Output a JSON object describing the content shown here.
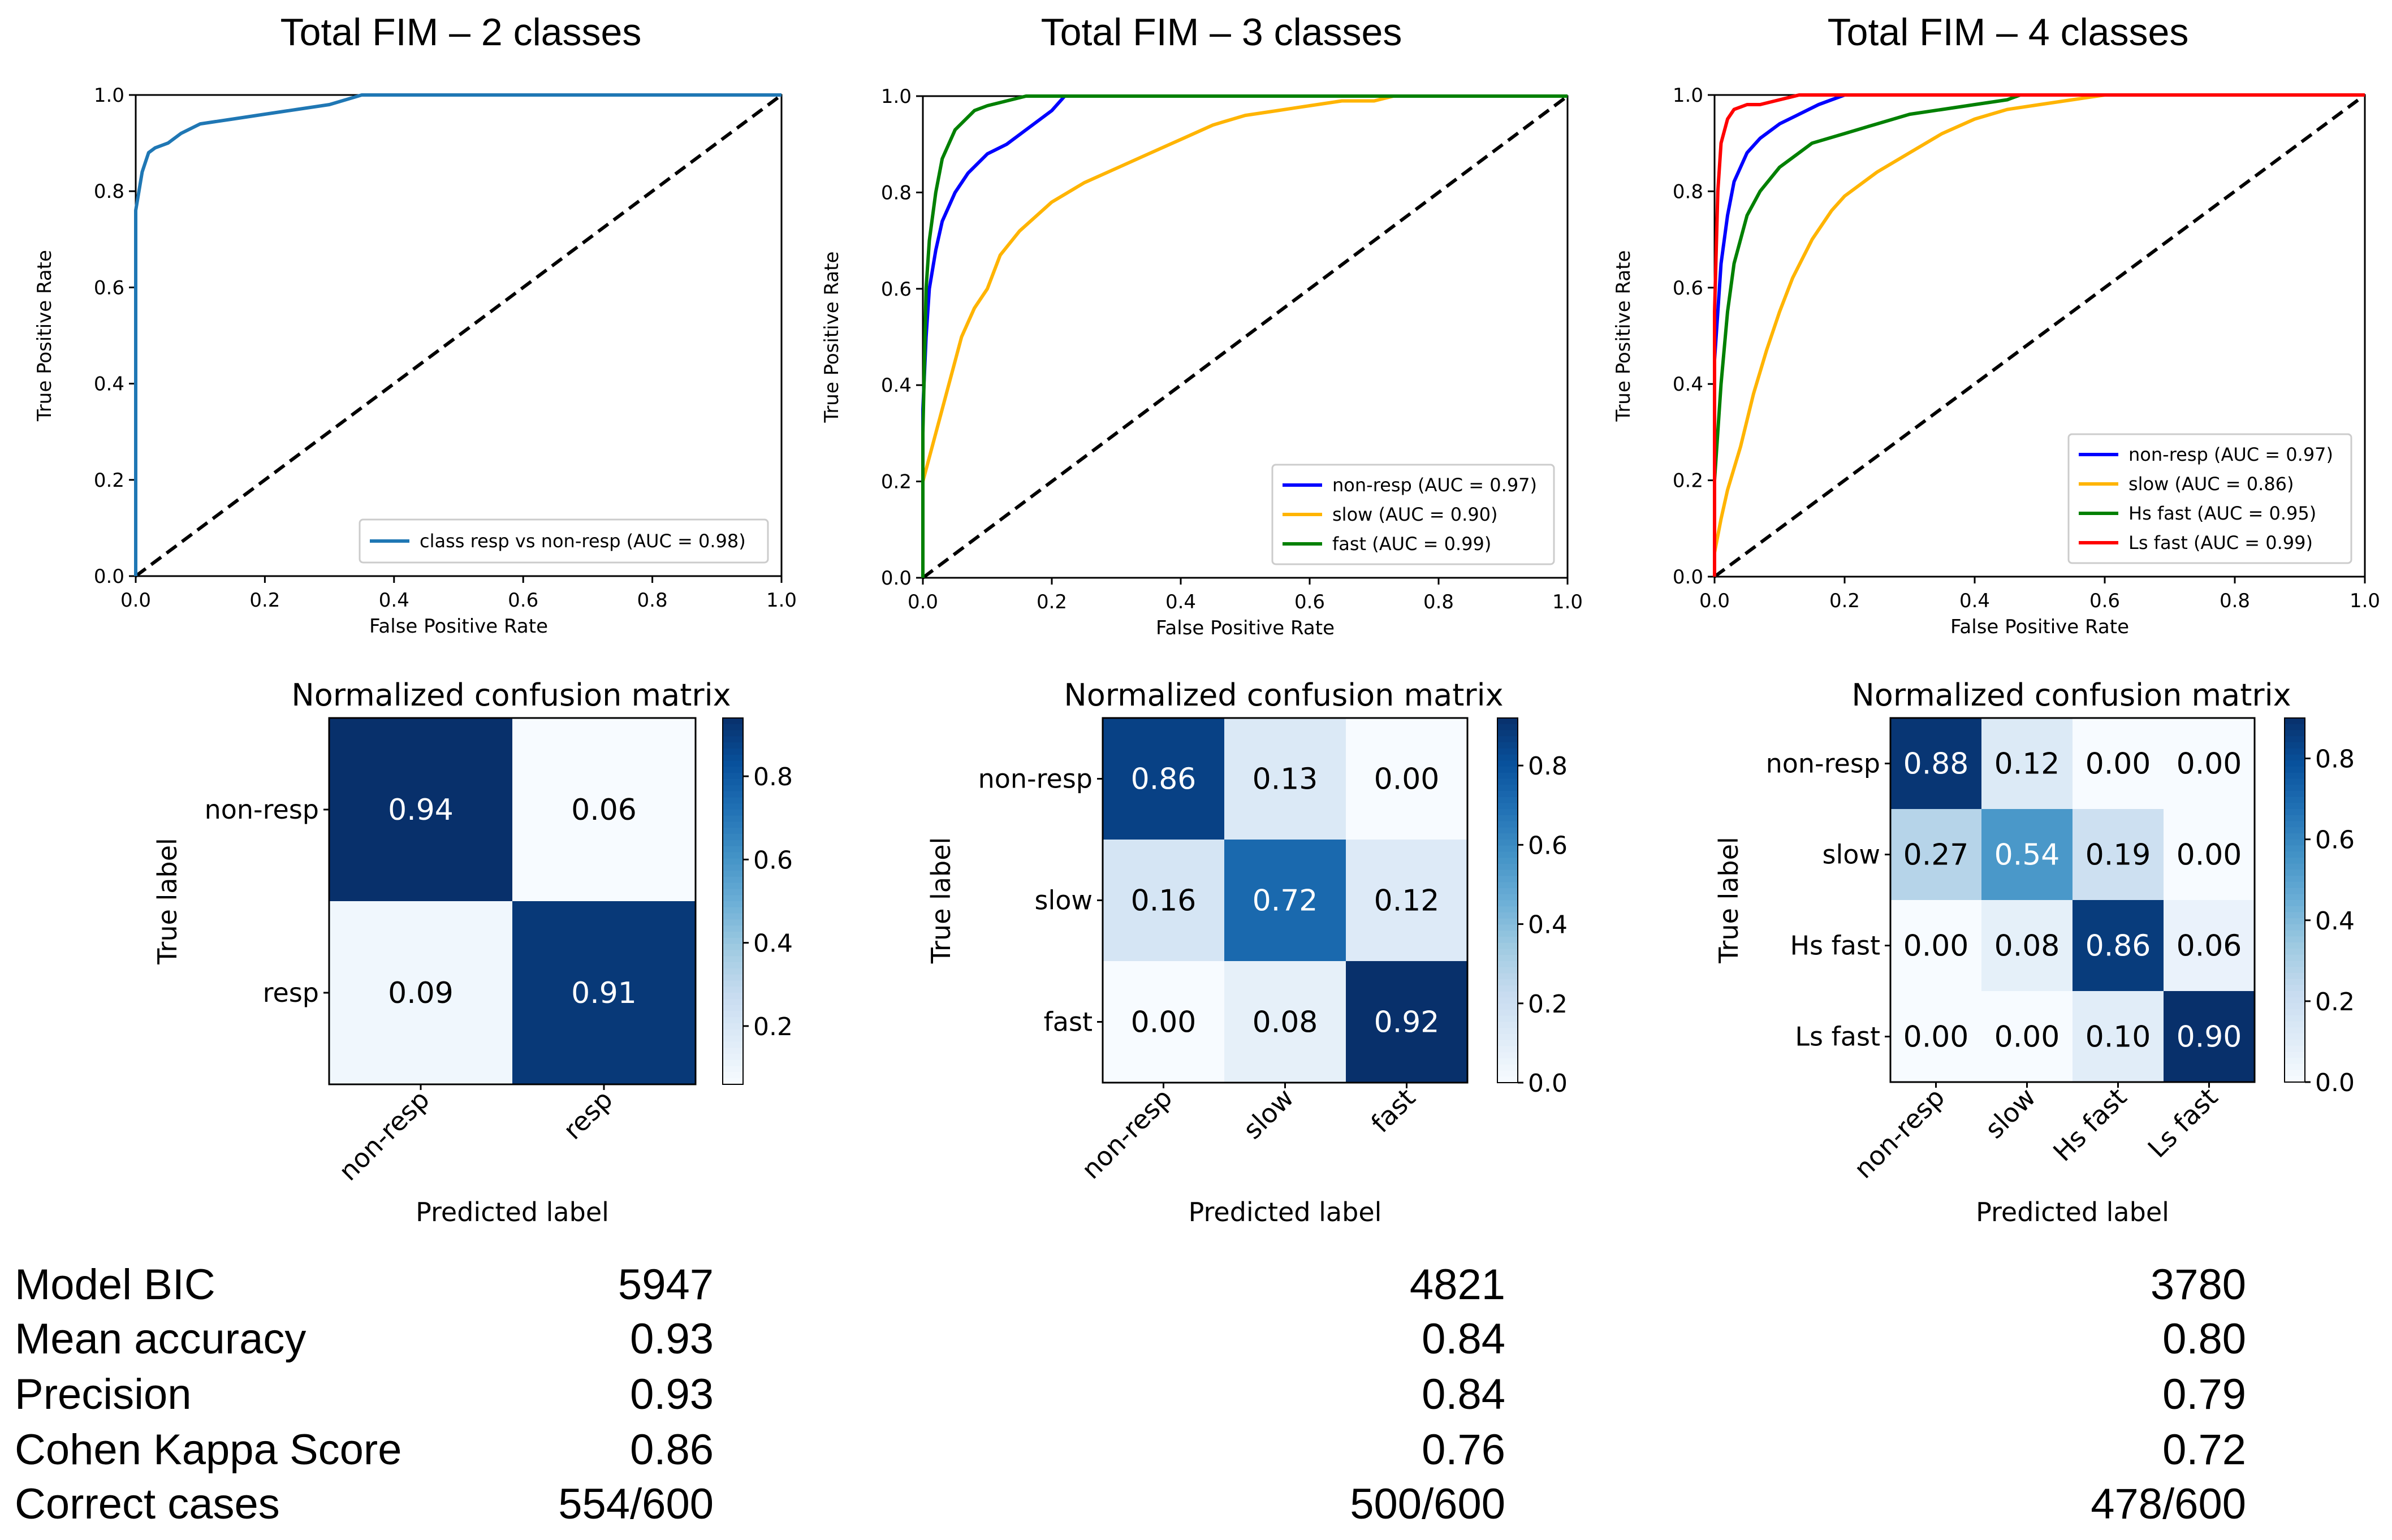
{
  "chart_data": [
    {
      "type": "line",
      "title": "Total FIM – 2 classes",
      "xlabel": "False Positive Rate",
      "ylabel": "True Positive Rate",
      "xlim": [
        0.0,
        1.0
      ],
      "ylim": [
        0.0,
        1.0
      ],
      "xticks": [
        "0.0",
        "0.2",
        "0.4",
        "0.6",
        "0.8",
        "1.0"
      ],
      "yticks": [
        "0.0",
        "0.2",
        "0.4",
        "0.6",
        "0.8",
        "1.0"
      ],
      "legend_position": "lower-right",
      "diagonal": "dashed",
      "series": [
        {
          "name": "class resp vs non-resp (AUC = 0.98)",
          "color": "#1f77b4",
          "x": [
            0,
            0,
            0.005,
            0.01,
            0.015,
            0.02,
            0.03,
            0.05,
            0.07,
            0.1,
            0.15,
            0.2,
            0.25,
            0.3,
            0.35,
            0.5,
            0.7,
            1.0
          ],
          "y": [
            0,
            0.76,
            0.8,
            0.84,
            0.86,
            0.88,
            0.89,
            0.9,
            0.92,
            0.94,
            0.95,
            0.96,
            0.97,
            0.98,
            1.0,
            1.0,
            1.0,
            1.0
          ]
        }
      ]
    },
    {
      "type": "line",
      "title": "Total FIM – 3 classes",
      "xlabel": "False Positive Rate",
      "ylabel": "True Positive Rate",
      "xlim": [
        0.0,
        1.0
      ],
      "ylim": [
        0.0,
        1.0
      ],
      "xticks": [
        "0.0",
        "0.2",
        "0.4",
        "0.6",
        "0.8",
        "1.0"
      ],
      "yticks": [
        "0.0",
        "0.2",
        "0.4",
        "0.6",
        "0.8",
        "1.0"
      ],
      "legend_position": "lower-right",
      "diagonal": "dashed",
      "series": [
        {
          "name": "non-resp (AUC = 0.97)",
          "color": "#0000ff",
          "x": [
            0,
            0,
            0.005,
            0.01,
            0.02,
            0.03,
            0.05,
            0.07,
            0.1,
            0.13,
            0.16,
            0.2,
            0.22,
            0.5,
            1.0
          ],
          "y": [
            0,
            0.35,
            0.5,
            0.6,
            0.68,
            0.74,
            0.8,
            0.84,
            0.88,
            0.9,
            0.93,
            0.97,
            1.0,
            1.0,
            1.0
          ]
        },
        {
          "name": "slow (AUC = 0.90)",
          "color": "#ffb400",
          "x": [
            0,
            0,
            0.01,
            0.02,
            0.04,
            0.06,
            0.08,
            0.1,
            0.12,
            0.15,
            0.2,
            0.25,
            0.3,
            0.35,
            0.4,
            0.45,
            0.5,
            0.55,
            0.6,
            0.65,
            0.7,
            0.73,
            0.8,
            1.0
          ],
          "y": [
            0,
            0.2,
            0.25,
            0.3,
            0.4,
            0.5,
            0.56,
            0.6,
            0.67,
            0.72,
            0.78,
            0.82,
            0.85,
            0.88,
            0.91,
            0.94,
            0.96,
            0.97,
            0.98,
            0.99,
            0.99,
            1.0,
            1.0,
            1.0
          ]
        },
        {
          "name": "fast (AUC = 0.99)",
          "color": "#008000",
          "x": [
            0,
            0,
            0.005,
            0.01,
            0.02,
            0.03,
            0.05,
            0.08,
            0.1,
            0.13,
            0.16,
            0.18,
            0.3,
            1.0
          ],
          "y": [
            0,
            0.3,
            0.6,
            0.7,
            0.8,
            0.87,
            0.93,
            0.97,
            0.98,
            0.99,
            1.0,
            1.0,
            1.0,
            1.0
          ]
        }
      ]
    },
    {
      "type": "line",
      "title": "Total FIM – 4 classes",
      "xlabel": "False Positive Rate",
      "ylabel": "True Positive Rate",
      "xlim": [
        0.0,
        1.0
      ],
      "ylim": [
        0.0,
        1.0
      ],
      "xticks": [
        "0.0",
        "0.2",
        "0.4",
        "0.6",
        "0.8",
        "1.0"
      ],
      "yticks": [
        "0.0",
        "0.2",
        "0.4",
        "0.6",
        "0.8",
        "1.0"
      ],
      "legend_position": "lower-right",
      "diagonal": "dashed",
      "series": [
        {
          "name": "non-resp (AUC = 0.97)",
          "color": "#0000ff",
          "x": [
            0,
            0,
            0.005,
            0.01,
            0.02,
            0.03,
            0.05,
            0.07,
            0.1,
            0.13,
            0.16,
            0.2,
            0.3,
            1.0
          ],
          "y": [
            0,
            0.45,
            0.55,
            0.65,
            0.75,
            0.82,
            0.88,
            0.91,
            0.94,
            0.96,
            0.98,
            1.0,
            1.0,
            1.0
          ]
        },
        {
          "name": "slow (AUC = 0.86)",
          "color": "#ffb400",
          "x": [
            0,
            0,
            0.01,
            0.02,
            0.04,
            0.06,
            0.08,
            0.1,
            0.12,
            0.15,
            0.18,
            0.2,
            0.25,
            0.3,
            0.35,
            0.4,
            0.45,
            0.5,
            0.55,
            0.6,
            0.7,
            1.0
          ],
          "y": [
            0,
            0.05,
            0.12,
            0.18,
            0.27,
            0.38,
            0.47,
            0.55,
            0.62,
            0.7,
            0.76,
            0.79,
            0.84,
            0.88,
            0.92,
            0.95,
            0.97,
            0.98,
            0.99,
            1.0,
            1.0,
            1.0
          ]
        },
        {
          "name": "Hs fast (AUC = 0.95)",
          "color": "#008000",
          "x": [
            0,
            0,
            0.01,
            0.02,
            0.03,
            0.05,
            0.07,
            0.1,
            0.12,
            0.15,
            0.2,
            0.25,
            0.3,
            0.35,
            0.4,
            0.45,
            0.47,
            0.6,
            1.0
          ],
          "y": [
            0,
            0.2,
            0.4,
            0.55,
            0.65,
            0.75,
            0.8,
            0.85,
            0.87,
            0.9,
            0.92,
            0.94,
            0.96,
            0.97,
            0.98,
            0.99,
            1.0,
            1.0,
            1.0
          ]
        },
        {
          "name": "Ls fast (AUC = 0.99)",
          "color": "#ff0000",
          "x": [
            0,
            0,
            0.005,
            0.01,
            0.02,
            0.03,
            0.05,
            0.07,
            0.1,
            0.13,
            0.2,
            1.0
          ],
          "y": [
            0,
            0.55,
            0.8,
            0.9,
            0.95,
            0.97,
            0.98,
            0.98,
            0.99,
            1.0,
            1.0,
            1.0
          ]
        }
      ]
    },
    {
      "type": "heatmap",
      "title": "Normalized confusion matrix",
      "xlabel": "Predicted label",
      "ylabel": "True label",
      "labels": [
        "non-resp",
        "resp"
      ],
      "values": [
        [
          0.94,
          0.06
        ],
        [
          0.09,
          0.91
        ]
      ],
      "cell_text": [
        [
          "0.94",
          "0.06"
        ],
        [
          "0.09",
          "0.91"
        ]
      ],
      "colorbar_ticks": [
        "0.2",
        "0.4",
        "0.6",
        "0.8"
      ],
      "colorbar_tick_values": [
        0.2,
        0.4,
        0.6,
        0.8
      ],
      "colorbar_range": [
        0.06,
        0.94
      ],
      "colormap": "Blues"
    },
    {
      "type": "heatmap",
      "title": "Normalized confusion matrix",
      "xlabel": "Predicted label",
      "ylabel": "True label",
      "labels": [
        "non-resp",
        "slow",
        "fast"
      ],
      "values": [
        [
          0.86,
          0.13,
          0.0
        ],
        [
          0.16,
          0.72,
          0.12
        ],
        [
          0.0,
          0.08,
          0.92
        ]
      ],
      "cell_text": [
        [
          "0.86",
          "0.13",
          "0.00"
        ],
        [
          "0.16",
          "0.72",
          "0.12"
        ],
        [
          "0.00",
          "0.08",
          "0.92"
        ]
      ],
      "colorbar_ticks": [
        "0.0",
        "0.2",
        "0.4",
        "0.6",
        "0.8"
      ],
      "colorbar_tick_values": [
        0.0,
        0.2,
        0.4,
        0.6,
        0.8
      ],
      "colorbar_range": [
        0.0,
        0.92
      ],
      "colormap": "Blues"
    },
    {
      "type": "heatmap",
      "title": "Normalized confusion matrix",
      "xlabel": "Predicted label",
      "ylabel": "True label",
      "labels": [
        "non-resp",
        "slow",
        "Hs fast",
        "Ls fast"
      ],
      "values": [
        [
          0.88,
          0.12,
          0.0,
          0.0
        ],
        [
          0.27,
          0.54,
          0.19,
          0.0
        ],
        [
          0.0,
          0.08,
          0.86,
          0.06
        ],
        [
          0.0,
          0.0,
          0.1,
          0.9
        ]
      ],
      "cell_text": [
        [
          "0.88",
          "0.12",
          "0.00",
          "0.00"
        ],
        [
          "0.27",
          "0.54",
          "0.19",
          "0.00"
        ],
        [
          "0.00",
          "0.08",
          "0.86",
          "0.06"
        ],
        [
          "0.00",
          "0.00",
          "0.10",
          "0.90"
        ]
      ],
      "colorbar_ticks": [
        "0.0",
        "0.2",
        "0.4",
        "0.6",
        "0.8"
      ],
      "colorbar_tick_values": [
        0.0,
        0.2,
        0.4,
        0.6,
        0.8
      ],
      "colorbar_range": [
        0.0,
        0.9
      ],
      "colormap": "Blues"
    }
  ],
  "stats_table": {
    "rows": [
      {
        "label": "Model BIC",
        "values": [
          "5947",
          "4821",
          "3780"
        ]
      },
      {
        "label": "Mean accuracy",
        "values": [
          "0.93",
          "0.84",
          "0.80"
        ]
      },
      {
        "label": "Precision",
        "values": [
          "0.93",
          "0.84",
          "0.79"
        ]
      },
      {
        "label": "Cohen Kappa Score",
        "values": [
          "0.86",
          "0.76",
          "0.72"
        ]
      },
      {
        "label": "Correct cases",
        "values": [
          "554/600",
          "500/600",
          "478/600"
        ]
      }
    ]
  }
}
